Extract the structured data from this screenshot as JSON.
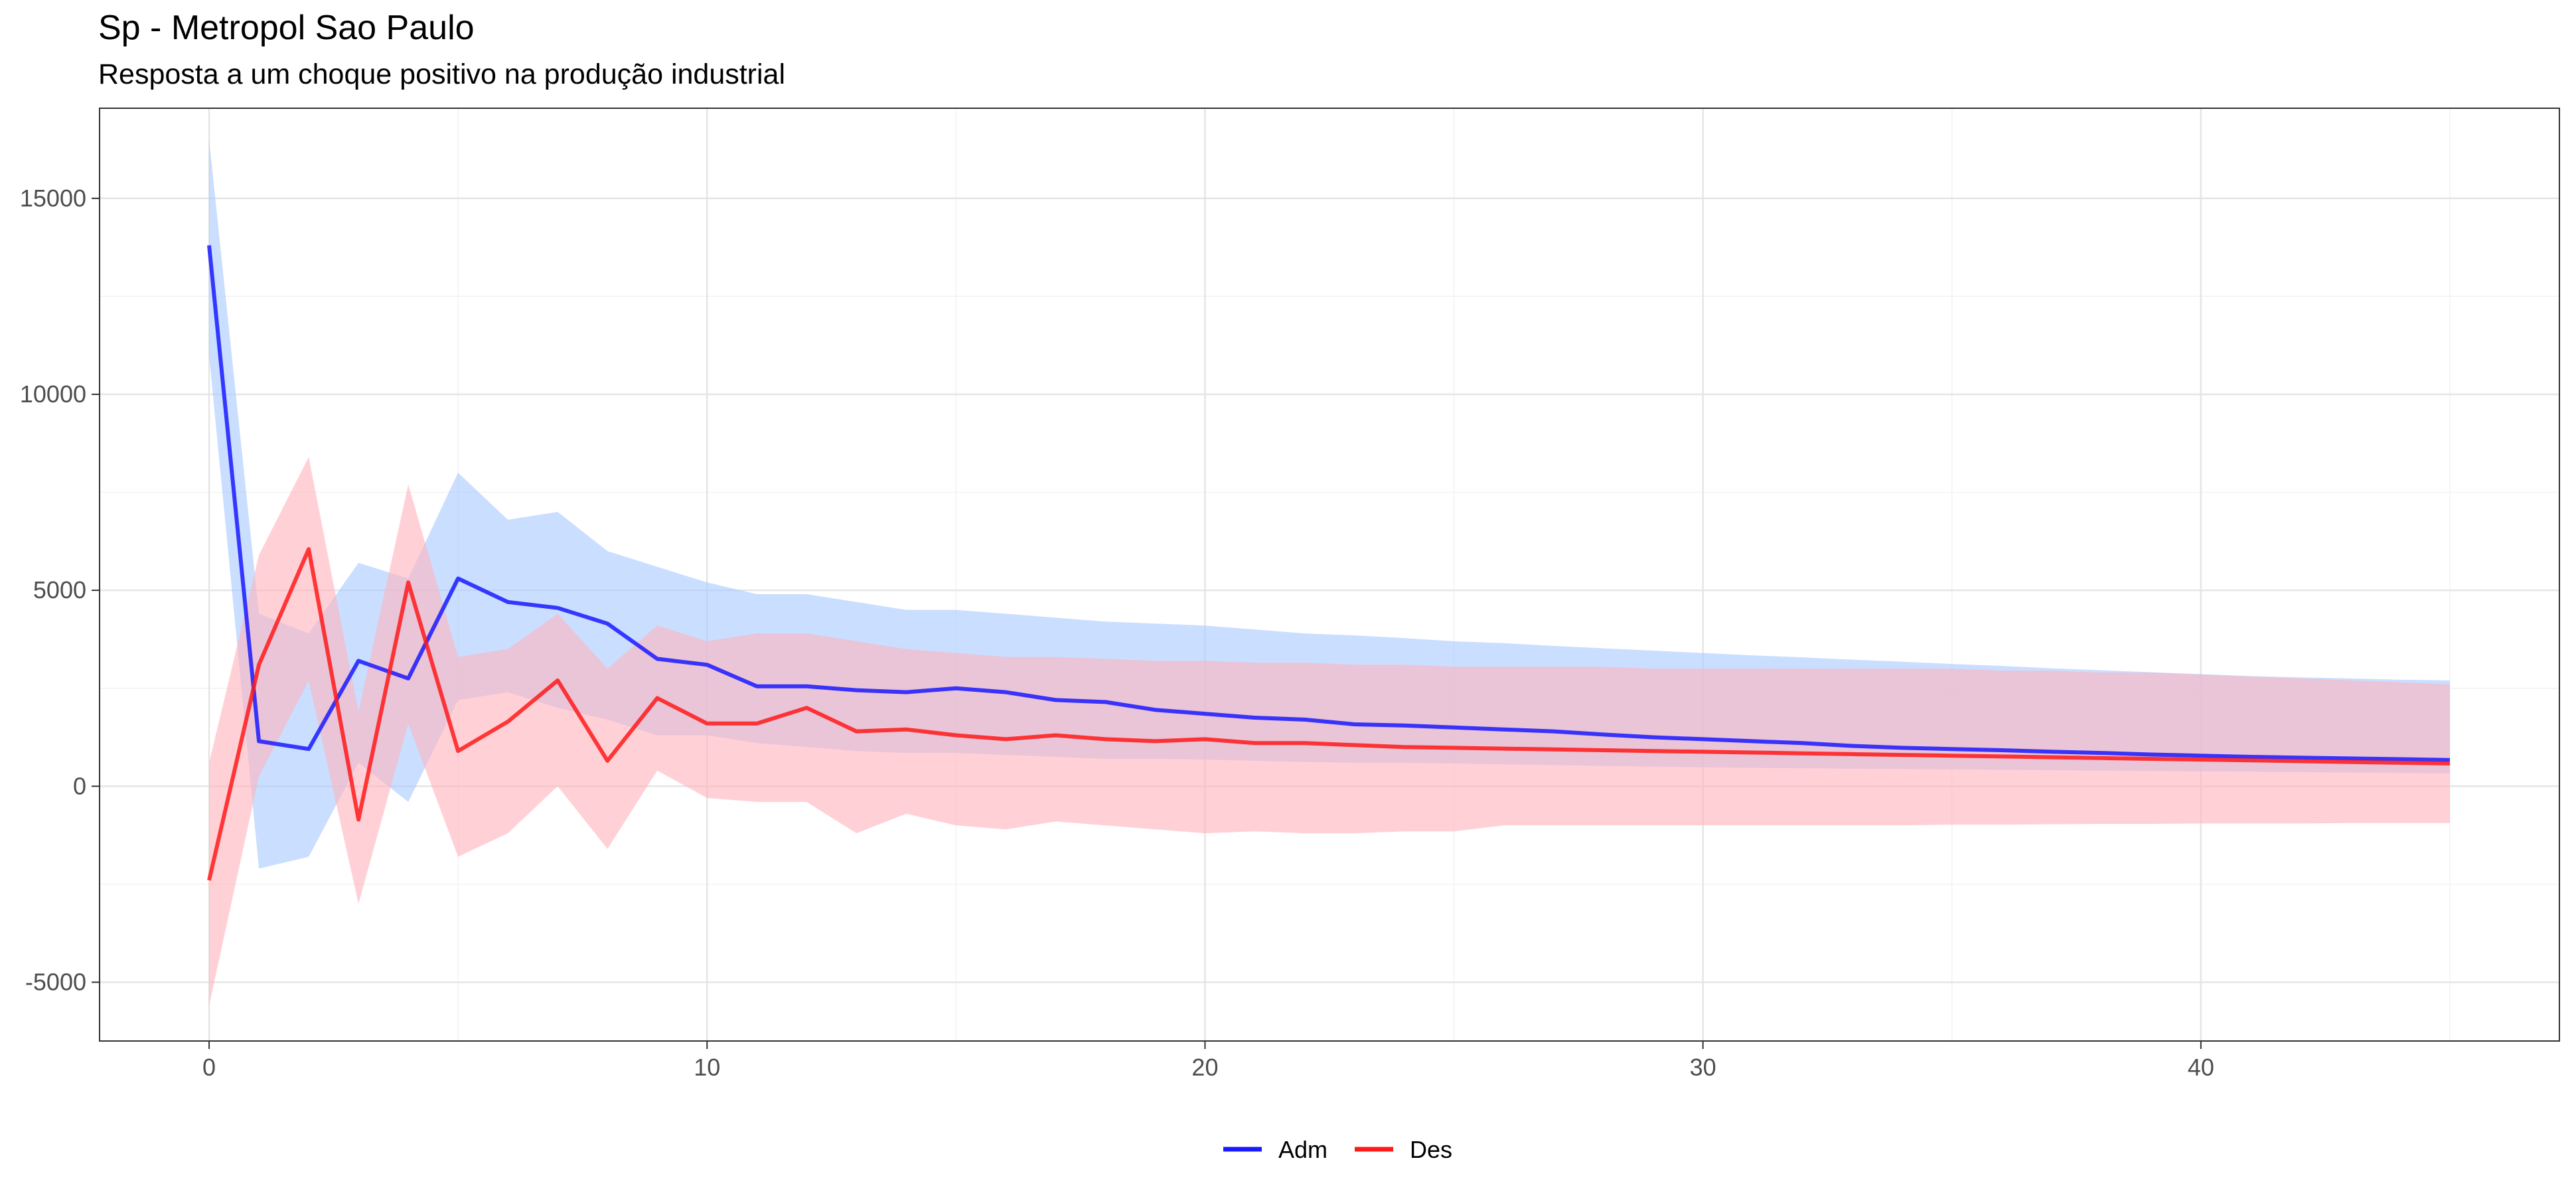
{
  "chart_data": {
    "type": "line",
    "title": "Sp - Metropol Sao Paulo",
    "subtitle": "Resposta a um choque positivo na produção industrial",
    "xlabel": "",
    "ylabel": "",
    "xlim": [
      -2.2,
      47.2
    ],
    "ylim": [
      -6500,
      17300
    ],
    "x_ticks": [
      0,
      10,
      20,
      30,
      40
    ],
    "y_ticks": [
      -5000,
      0,
      5000,
      10000,
      15000
    ],
    "grid": true,
    "legend_position": "bottom",
    "x": [
      0,
      1,
      2,
      3,
      4,
      5,
      6,
      7,
      8,
      9,
      10,
      11,
      12,
      13,
      14,
      15,
      16,
      17,
      18,
      19,
      20,
      21,
      22,
      23,
      24,
      25,
      26,
      27,
      28,
      29,
      30,
      31,
      32,
      33,
      34,
      35,
      36,
      37,
      38,
      39,
      40,
      41,
      42,
      43,
      44,
      45
    ],
    "series": [
      {
        "name": "Adm",
        "color": "#1a1aff",
        "band_color": "#a6c8ff",
        "values": [
          13800,
          1150,
          950,
          3200,
          2750,
          5300,
          4700,
          4550,
          4150,
          3250,
          3100,
          2550,
          2550,
          2450,
          2400,
          2500,
          2400,
          2200,
          2150,
          1950,
          1850,
          1750,
          1700,
          1580,
          1550,
          1500,
          1450,
          1400,
          1320,
          1250,
          1200,
          1150,
          1100,
          1030,
          980,
          950,
          920,
          880,
          850,
          810,
          780,
          750,
          730,
          710,
          690,
          670
        ],
        "lower": [
          11000,
          -2100,
          -1800,
          600,
          -400,
          2200,
          2400,
          2000,
          1700,
          1300,
          1300,
          1100,
          1000,
          900,
          850,
          850,
          800,
          750,
          700,
          700,
          680,
          650,
          620,
          600,
          600,
          580,
          560,
          540,
          520,
          500,
          480,
          470,
          460,
          450,
          440,
          430,
          420,
          410,
          400,
          390,
          380,
          370,
          360,
          350,
          340,
          330
        ],
        "upper": [
          16500,
          4400,
          3900,
          5700,
          5300,
          8000,
          6800,
          7000,
          6000,
          5600,
          5200,
          4900,
          4900,
          4700,
          4500,
          4500,
          4400,
          4300,
          4200,
          4150,
          4100,
          4000,
          3900,
          3850,
          3780,
          3700,
          3650,
          3580,
          3520,
          3460,
          3400,
          3340,
          3290,
          3230,
          3180,
          3120,
          3070,
          3010,
          2960,
          2910,
          2860,
          2810,
          2780,
          2750,
          2720,
          2700
        ]
      },
      {
        "name": "Des",
        "color": "#ff1a1a",
        "band_color": "#ffb3bc",
        "values": [
          -2400,
          3100,
          6050,
          -850,
          5200,
          900,
          1650,
          2700,
          650,
          2250,
          1600,
          1600,
          2000,
          1400,
          1450,
          1300,
          1200,
          1300,
          1200,
          1150,
          1200,
          1100,
          1100,
          1050,
          1000,
          980,
          960,
          940,
          920,
          900,
          880,
          860,
          840,
          820,
          800,
          780,
          760,
          740,
          720,
          700,
          680,
          660,
          640,
          620,
          600,
          580
        ],
        "lower": [
          -5600,
          250,
          2700,
          -3000,
          1600,
          -1800,
          -1200,
          0,
          -1600,
          400,
          -300,
          -400,
          -400,
          -1200,
          -700,
          -1000,
          -1100,
          -900,
          -1000,
          -1100,
          -1200,
          -1150,
          -1200,
          -1200,
          -1150,
          -1150,
          -1000,
          -1000,
          -1000,
          -1000,
          -1000,
          -1000,
          -1000,
          -1000,
          -1000,
          -980,
          -980,
          -970,
          -960,
          -960,
          -950,
          -950,
          -950,
          -940,
          -940,
          -940
        ],
        "upper": [
          600,
          5900,
          8400,
          1900,
          7700,
          3300,
          3500,
          4400,
          3000,
          4100,
          3700,
          3900,
          3900,
          3700,
          3500,
          3400,
          3300,
          3300,
          3250,
          3200,
          3200,
          3150,
          3150,
          3100,
          3100,
          3050,
          3050,
          3050,
          3050,
          3000,
          3000,
          3000,
          3000,
          3000,
          3000,
          3000,
          2950,
          2950,
          2900,
          2900,
          2850,
          2800,
          2750,
          2700,
          2650,
          2600
        ]
      }
    ]
  }
}
